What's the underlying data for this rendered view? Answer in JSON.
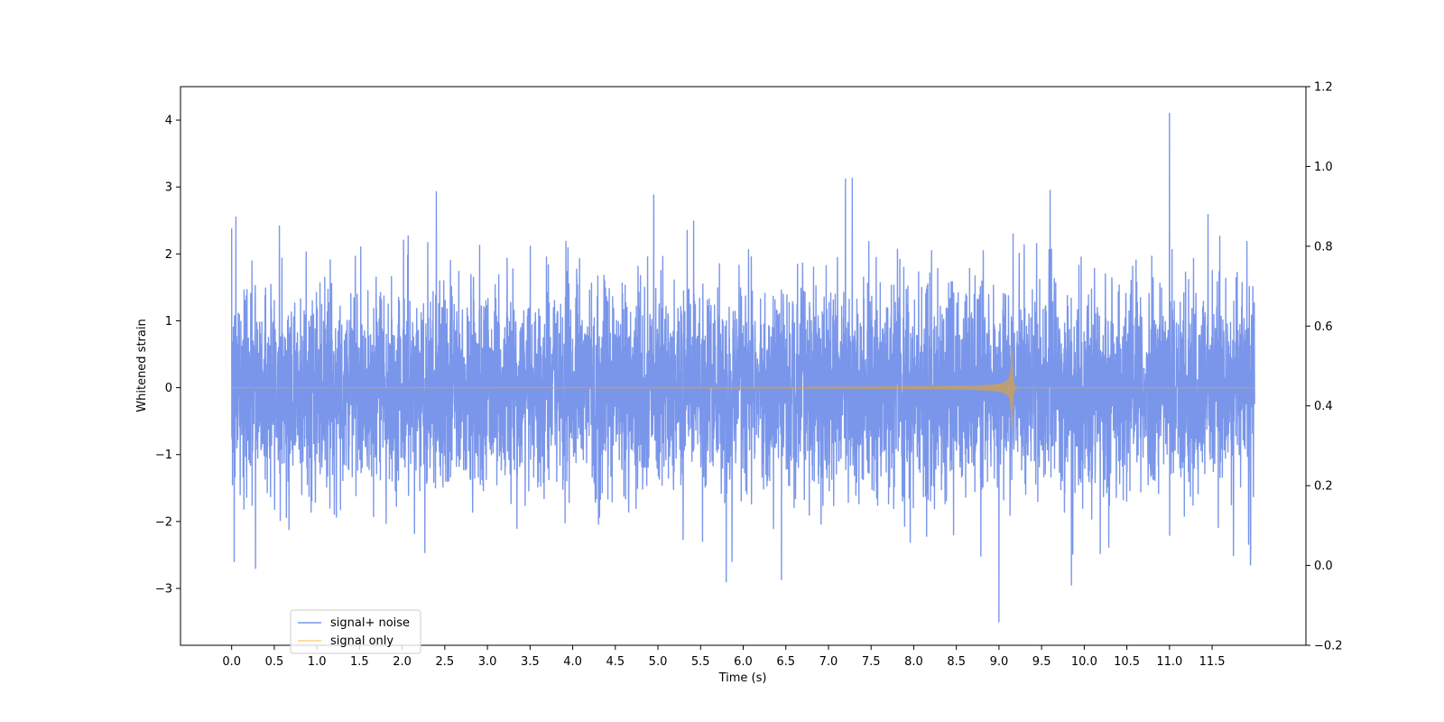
{
  "chart_data": {
    "type": "line",
    "title": "",
    "xlabel": "Time (s)",
    "ylabel": "Whitened strain",
    "xlim": [
      -0.6,
      12.6
    ],
    "ylim": [
      -3.85,
      4.5
    ],
    "y2lim": [
      -0.2,
      1.2
    ],
    "xticks": [
      "0.0",
      "0.5",
      "1.0",
      "1.5",
      "2.0",
      "2.5",
      "3.0",
      "3.5",
      "4.0",
      "4.5",
      "5.0",
      "5.5",
      "6.0",
      "6.5",
      "7.0",
      "7.5",
      "8.0",
      "8.5",
      "9.0",
      "9.5",
      "10.0",
      "10.5",
      "11.0",
      "11.5"
    ],
    "yticks": [
      4,
      3,
      2,
      1,
      0,
      -1,
      -2,
      -3
    ],
    "y2ticks": [
      "1.2",
      "1.0",
      "0.8",
      "0.6",
      "0.4",
      "0.2",
      "0.0",
      "−0.2"
    ],
    "grid": false,
    "legend_position": "lower-left",
    "series": [
      {
        "name": "signal+ noise",
        "color": "#4169e1",
        "x_range": [
          0.0,
          12.0
        ],
        "noise_std": 0.75,
        "peaks_high": [
          [
            0.0,
            2.38
          ],
          [
            0.05,
            2.55
          ],
          [
            2.4,
            2.93
          ],
          [
            4.95,
            2.88
          ],
          [
            7.2,
            3.12
          ],
          [
            7.28,
            3.13
          ],
          [
            9.6,
            2.95
          ],
          [
            11.0,
            4.1
          ]
        ],
        "peaks_low": [
          [
            0.03,
            -2.6
          ],
          [
            0.28,
            -2.7
          ],
          [
            5.8,
            -2.9
          ],
          [
            6.45,
            -2.87
          ],
          [
            9.0,
            -3.5
          ],
          [
            9.85,
            -2.95
          ],
          [
            11.95,
            -2.65
          ]
        ]
      },
      {
        "name": "signal only",
        "color": "#ffa500",
        "x_range": [
          0.0,
          12.0
        ],
        "merger_time": 9.15,
        "peak_amplitude": 0.58,
        "amplitude_at_start": 0.005
      }
    ]
  }
}
